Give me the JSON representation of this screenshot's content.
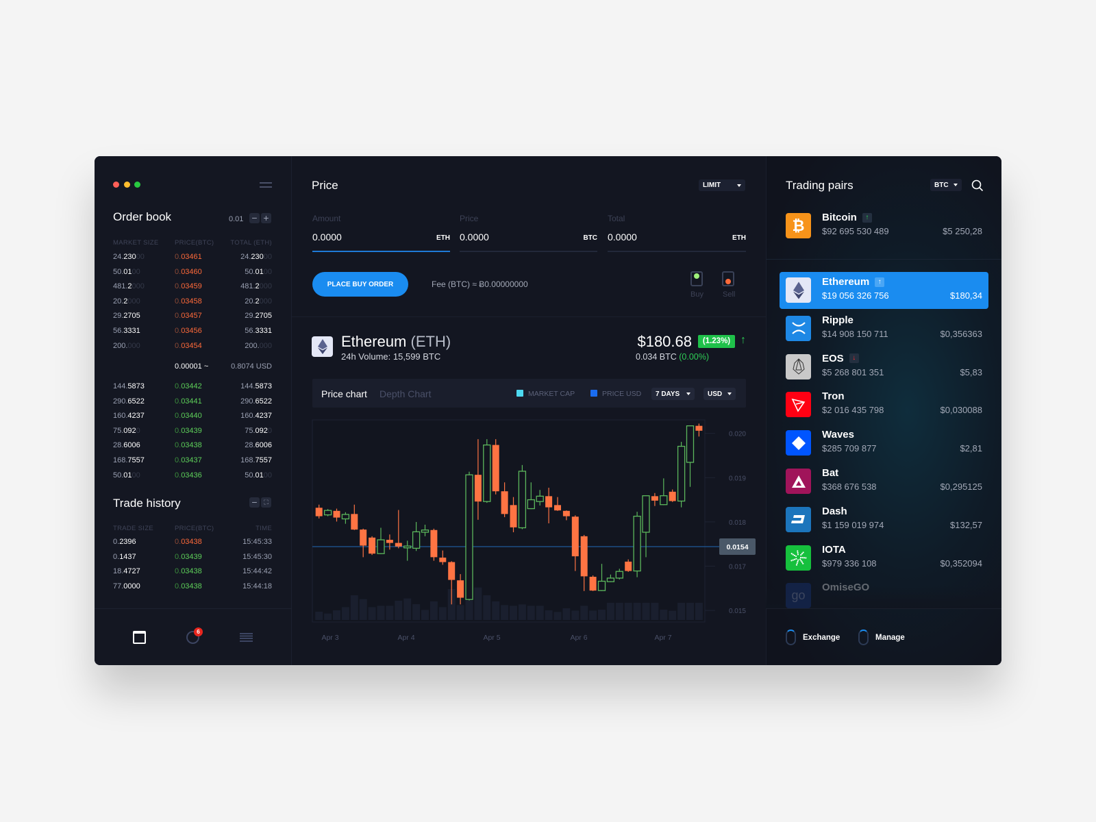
{
  "window": {
    "title_dots": [
      "#ff5f57",
      "#ffbd2e",
      "#28c840"
    ]
  },
  "order_book": {
    "title": "Order book",
    "step": "0.01",
    "minus": "−",
    "plus": "+",
    "headers": [
      "MARKET SIZE",
      "PRICE(BTC)",
      "TOTAL (ETH)"
    ],
    "asks": [
      {
        "size": [
          "24.",
          "230",
          "00"
        ],
        "price": [
          "0.",
          "03461"
        ],
        "total": [
          "24.",
          "230",
          "00"
        ]
      },
      {
        "size": [
          "50.",
          "01",
          "00"
        ],
        "price": [
          "0.",
          "03460"
        ],
        "total": [
          "50.",
          "01",
          "00"
        ]
      },
      {
        "size": [
          "481.",
          "2",
          "000"
        ],
        "price": [
          "0.",
          "03459"
        ],
        "total": [
          "481.",
          "2",
          "000"
        ]
      },
      {
        "size": [
          "20.",
          "2",
          "000"
        ],
        "price": [
          "0.",
          "03458"
        ],
        "total": [
          "20.",
          "2",
          "000"
        ]
      },
      {
        "size": [
          "29.",
          "2705",
          ""
        ],
        "price": [
          "0.",
          "03457"
        ],
        "total": [
          "29.",
          "2705",
          ""
        ]
      },
      {
        "size": [
          "56.",
          "3331",
          ""
        ],
        "price": [
          "0.",
          "03456"
        ],
        "total": [
          "56.",
          "3331",
          ""
        ]
      },
      {
        "size": [
          "200.",
          "",
          "000"
        ],
        "price": [
          "0.",
          "03454"
        ],
        "total": [
          "200.",
          "",
          "000"
        ]
      }
    ],
    "spread": "0.00001 ~",
    "spread_usd": "0.8074 USD",
    "bids": [
      {
        "size": [
          "144.",
          "5873",
          ""
        ],
        "price": [
          "0.",
          "03442"
        ],
        "total": [
          "144.",
          "5873",
          ""
        ]
      },
      {
        "size": [
          "290.",
          "6522",
          ""
        ],
        "price": [
          "0.",
          "03441"
        ],
        "total": [
          "290.",
          "6522",
          ""
        ]
      },
      {
        "size": [
          "160.",
          "4237",
          ""
        ],
        "price": [
          "0.",
          "03440"
        ],
        "total": [
          "160.",
          "4237",
          ""
        ]
      },
      {
        "size": [
          "75.",
          "092",
          "0"
        ],
        "price": [
          "0.",
          "03439"
        ],
        "total": [
          "75.",
          "092",
          "0"
        ]
      },
      {
        "size": [
          "28.",
          "6006",
          ""
        ],
        "price": [
          "0.",
          "03438"
        ],
        "total": [
          "28.",
          "6006",
          ""
        ]
      },
      {
        "size": [
          "168.",
          "7557",
          ""
        ],
        "price": [
          "0.",
          "03437"
        ],
        "total": [
          "168.",
          "7557",
          ""
        ]
      },
      {
        "size": [
          "50.",
          "01",
          "00"
        ],
        "price": [
          "0.",
          "03436"
        ],
        "total": [
          "50.",
          "01",
          "00"
        ]
      }
    ]
  },
  "trade_history": {
    "title": "Trade history",
    "headers": [
      "TRADE SIZE",
      "PRICE(BTC)",
      "TIME"
    ],
    "rows": [
      {
        "size": [
          "0.",
          "2396"
        ],
        "price": [
          "0.",
          "03438"
        ],
        "side": "sell",
        "time": "15:45:33"
      },
      {
        "size": [
          "0.",
          "1437"
        ],
        "price": [
          "0.",
          "03439"
        ],
        "side": "buy",
        "time": "15:45:30"
      },
      {
        "size": [
          "18.",
          "4727"
        ],
        "price": [
          "0.",
          "03438"
        ],
        "side": "buy",
        "time": "15:44:42"
      },
      {
        "size": [
          "77.",
          "0000"
        ],
        "price": [
          "0.",
          "03438"
        ],
        "side": "buy",
        "time": "15:44:18"
      }
    ]
  },
  "bottom_nav": {
    "badge": "6"
  },
  "order_form": {
    "title": "Price",
    "order_type": "LIMIT",
    "fields": [
      {
        "label": "Amount",
        "value": "0.0000",
        "unit": "ETH"
      },
      {
        "label": "Price",
        "value": "0.0000",
        "unit": "BTC"
      },
      {
        "label": "Total",
        "value": "0.0000",
        "unit": "ETH"
      }
    ],
    "submit": "PLACE BUY ORDER",
    "fee": "Fee (BTC) ≈ Ƀ0.00000000",
    "buy": "Buy",
    "sell": "Sell"
  },
  "asset": {
    "name": "Ethereum",
    "symbol": "(ETH)",
    "volume": "24h Volume: 15,599 BTC",
    "price": "$180.68",
    "change": "(1.23%)",
    "btc_price": "0.034 BTC",
    "btc_change": "(0.00%)"
  },
  "chart_tabs": {
    "active": "Price chart",
    "inactive": "Depth Chart",
    "legend": [
      {
        "label": "MARKET CAP",
        "color": "#4dd9f0"
      },
      {
        "label": "PRICE USD",
        "color": "#1a6cf0"
      }
    ],
    "range": "7 DAYS",
    "currency": "USD"
  },
  "chart_data": {
    "type": "candlestick",
    "x_labels": [
      "Apr 3",
      "Apr 4",
      "Apr 5",
      "Apr 6",
      "Apr 7"
    ],
    "y_ticks": [
      "0.020",
      "0.019",
      "0.018",
      "0.017",
      "0.015"
    ],
    "current_price": "0.0154",
    "colors": {
      "up": "#5cb85c",
      "down": "#ff7443"
    },
    "candles": [
      [
        0.01833,
        0.0184,
        0.01809,
        0.01814
      ],
      [
        0.01817,
        0.0183,
        0.01814,
        0.01827
      ],
      [
        0.01826,
        0.01831,
        0.01802,
        0.01811
      ],
      [
        0.01808,
        0.01823,
        0.01797,
        0.01818
      ],
      [
        0.01819,
        0.0184,
        0.01783,
        0.01784
      ],
      [
        0.01784,
        0.01786,
        0.01722,
        0.01748
      ],
      [
        0.01766,
        0.01769,
        0.01727,
        0.0173
      ],
      [
        0.0173,
        0.01788,
        0.01729,
        0.01761
      ],
      [
        0.01761,
        0.01773,
        0.01739,
        0.01754
      ],
      [
        0.01754,
        0.01828,
        0.01742,
        0.01746
      ],
      [
        0.01743,
        0.01759,
        0.01714,
        0.01747
      ],
      [
        0.01742,
        0.01801,
        0.01736,
        0.01779
      ],
      [
        0.01778,
        0.01795,
        0.01769,
        0.01783
      ],
      [
        0.01783,
        0.01786,
        0.01714,
        0.01722
      ],
      [
        0.01721,
        0.01737,
        0.01705,
        0.01711
      ],
      [
        0.01711,
        0.01713,
        0.01616,
        0.01671
      ],
      [
        0.0167,
        0.01684,
        0.01616,
        0.01631
      ],
      [
        0.01627,
        0.01914,
        0.01625,
        0.01907
      ],
      [
        0.01907,
        0.01987,
        0.01806,
        0.01847
      ],
      [
        0.01847,
        0.01987,
        0.01844,
        0.01974
      ],
      [
        0.01974,
        0.01987,
        0.01863,
        0.0187
      ],
      [
        0.0187,
        0.0189,
        0.01812,
        0.01819
      ],
      [
        0.01839,
        0.01857,
        0.01778,
        0.01789
      ],
      [
        0.01788,
        0.01929,
        0.01785,
        0.01915
      ],
      [
        0.01831,
        0.0189,
        0.0183,
        0.01851
      ],
      [
        0.01847,
        0.01873,
        0.01838,
        0.01859
      ],
      [
        0.01859,
        0.01878,
        0.01798,
        0.01834
      ],
      [
        0.01839,
        0.01857,
        0.01826,
        0.01827
      ],
      [
        0.01826,
        0.01827,
        0.01805,
        0.01814
      ],
      [
        0.01813,
        0.01816,
        0.01691,
        0.01724
      ],
      [
        0.01769,
        0.01772,
        0.01646,
        0.01679
      ],
      [
        0.01678,
        0.01681,
        0.01646,
        0.01647
      ],
      [
        0.01647,
        0.01707,
        0.01646,
        0.01668
      ],
      [
        0.01667,
        0.01683,
        0.01666,
        0.01675
      ],
      [
        0.01675,
        0.01696,
        0.01672,
        0.0169
      ],
      [
        0.01712,
        0.01717,
        0.01689,
        0.01691
      ],
      [
        0.01691,
        0.01824,
        0.01677,
        0.01814
      ],
      [
        0.01778,
        0.01861,
        0.01722,
        0.0186
      ],
      [
        0.01859,
        0.01866,
        0.01837,
        0.01849
      ],
      [
        0.0184,
        0.01899,
        0.01839,
        0.0186
      ],
      [
        0.01869,
        0.01874,
        0.01846,
        0.01848
      ],
      [
        0.01848,
        0.01981,
        0.01834,
        0.01971
      ],
      [
        0.01935,
        0.02018,
        0.0188,
        0.02017
      ],
      [
        0.02017,
        0.02022,
        0.01993,
        0.02006
      ]
    ],
    "volume": [
      36,
      28,
      42,
      56,
      108,
      91,
      56,
      62,
      62,
      84,
      94,
      69,
      44,
      81,
      56,
      135,
      65,
      85,
      142,
      108,
      81,
      65,
      62,
      68,
      62,
      62,
      42,
      35,
      51,
      41,
      62,
      41,
      45,
      75,
      75,
      75,
      75,
      75,
      75,
      45,
      40,
      75,
      75,
      75
    ]
  },
  "trading_pairs": {
    "title": "Trading pairs",
    "base": "BTC",
    "items": [
      {
        "name": "Bitcoin",
        "cap": "$92 695 530 489",
        "price": "$5 250,28",
        "trend": "up",
        "glyph": "₿",
        "color": "#f7931a"
      },
      {
        "name": "Ethereum",
        "cap": "$19 056 326 756",
        "price": "$180,34",
        "trend": "up",
        "glyph": "eth",
        "color": "#e4e7f6",
        "selected": true
      },
      {
        "name": "Ripple",
        "cap": "$14 908 150 711",
        "price": "$0,356363",
        "glyph": "xrp",
        "color": "#1e88e5"
      },
      {
        "name": "EOS",
        "cap": "$5 268 801 351",
        "price": "$5,83",
        "trend": "down",
        "glyph": "eos",
        "color": "#c9c9c9"
      },
      {
        "name": "Tron",
        "cap": "$2 016 435 798",
        "price": "$0,030088",
        "glyph": "trx",
        "color": "#ff0013"
      },
      {
        "name": "Waves",
        "cap": "$285 709 877",
        "price": "$2,81",
        "glyph": "waves",
        "color": "#0055ff"
      },
      {
        "name": "Bat",
        "cap": "$368 676 538",
        "price": "$0,295125",
        "glyph": "bat",
        "color": "#a0145a"
      },
      {
        "name": "Dash",
        "cap": "$1 159 019 974",
        "price": "$132,57",
        "glyph": "dash",
        "color": "#1c75bc"
      },
      {
        "name": "IOTA",
        "cap": "$979 336 108",
        "price": "$0,352094",
        "glyph": "iota",
        "color": "#16c03d"
      },
      {
        "name": "OmiseGO",
        "glyph": "go",
        "color": "#1a3a8c",
        "faded": true
      }
    ],
    "footer": {
      "exchange": "Exchange",
      "manage": "Manage"
    }
  }
}
